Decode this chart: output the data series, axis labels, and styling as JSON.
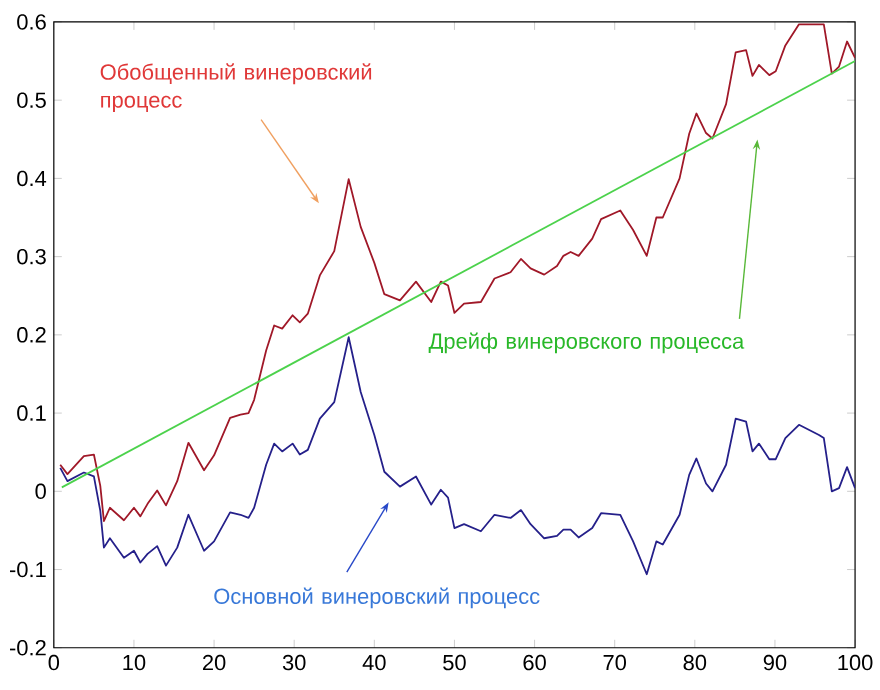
{
  "chart_data": {
    "type": "line",
    "xlim": [
      0,
      100
    ],
    "ylim": [
      -0.2,
      0.6
    ],
    "xticks": [
      0,
      10,
      20,
      30,
      40,
      50,
      60,
      70,
      80,
      90,
      100
    ],
    "yticks": [
      -0.2,
      -0.1,
      0,
      0.1,
      0.2,
      0.3,
      0.4,
      0.5,
      0.6
    ],
    "marker": "none",
    "line_style": "solid",
    "series": [
      {
        "color": "#a01828",
        "x": [
          0.8,
          1.7,
          3.75,
          5,
          5.8,
          6.25,
          7,
          8.75,
          10,
          10.8,
          11.7,
          12.9,
          14,
          15.4,
          16.8,
          18.75,
          20,
          22,
          23.3,
          24.3,
          25,
          26.5,
          27.5,
          28.5,
          29.8,
          30.7,
          31.7,
          33.2,
          35,
          36.8,
          38.3,
          40,
          41.25,
          43.2,
          45.2,
          47.1,
          48.3,
          49.2,
          50,
          51.2,
          53.3,
          55,
          57,
          58.3,
          59.5,
          61.2,
          62.8,
          63.6,
          64.5,
          65.5,
          67.2,
          68.3,
          70.7,
          72.3,
          74,
          75.2,
          76,
          78.1,
          79.3,
          80.2,
          81.4,
          82.2,
          83.9,
          85.1,
          86.4,
          87.2,
          88,
          89.3,
          90.1,
          91.3,
          93,
          95.5,
          96.1,
          97.1,
          98,
          99,
          100
        ],
        "values": [
          0.034,
          0.022,
          0.045,
          0.047,
          0.007,
          -0.038,
          -0.021,
          -0.037,
          -0.021,
          -0.032,
          -0.016,
          0.001,
          -0.018,
          0.013,
          0.062,
          0.027,
          0.046,
          0.094,
          0.098,
          0.1,
          0.117,
          0.18,
          0.212,
          0.208,
          0.225,
          0.216,
          0.227,
          0.276,
          0.307,
          0.399,
          0.338,
          0.292,
          0.252,
          0.244,
          0.268,
          0.242,
          0.268,
          0.263,
          0.228,
          0.24,
          0.242,
          0.272,
          0.28,
          0.297,
          0.285,
          0.277,
          0.288,
          0.301,
          0.306,
          0.301,
          0.323,
          0.348,
          0.359,
          0.334,
          0.301,
          0.35,
          0.35,
          0.4,
          0.457,
          0.483,
          0.458,
          0.451,
          0.495,
          0.561,
          0.564,
          0.531,
          0.545,
          0.532,
          0.537,
          0.57,
          0.597,
          0.597,
          0.597,
          0.534,
          0.543,
          0.575,
          0.554
        ]
      },
      {
        "color": "#25208a",
        "x": [
          0.8,
          1.7,
          3.75,
          5,
          5.8,
          6.25,
          7,
          8.75,
          10,
          10.8,
          11.7,
          12.9,
          14,
          15.4,
          16.8,
          18.75,
          20,
          22,
          23.3,
          24.3,
          25,
          26.5,
          27.5,
          28.5,
          29.8,
          30.7,
          31.7,
          33.2,
          35,
          36.8,
          38.3,
          40,
          41.25,
          43.2,
          45.2,
          47.1,
          48.3,
          49.2,
          50,
          51.2,
          53.3,
          55,
          57,
          58.3,
          59.5,
          61.2,
          62.8,
          63.6,
          64.5,
          65.5,
          67.2,
          68.3,
          70.7,
          72.3,
          74,
          75.2,
          76,
          78.1,
          79.3,
          80.2,
          81.4,
          82.2,
          83.9,
          85.1,
          86.4,
          87.2,
          88,
          89.3,
          90.1,
          91.3,
          93,
          95.5,
          96.1,
          97.1,
          98,
          99,
          100
        ],
        "values": [
          0.03,
          0.013,
          0.024,
          0.019,
          -0.025,
          -0.072,
          -0.06,
          -0.085,
          -0.076,
          -0.091,
          -0.08,
          -0.07,
          -0.095,
          -0.072,
          -0.03,
          -0.076,
          -0.064,
          -0.027,
          -0.03,
          -0.034,
          -0.021,
          0.034,
          0.061,
          0.051,
          0.061,
          0.047,
          0.053,
          0.093,
          0.114,
          0.197,
          0.127,
          0.072,
          0.025,
          0.006,
          0.019,
          -0.017,
          0.002,
          -0.008,
          -0.047,
          -0.042,
          -0.051,
          -0.03,
          -0.034,
          -0.024,
          -0.042,
          -0.06,
          -0.057,
          -0.049,
          -0.049,
          -0.059,
          -0.047,
          -0.028,
          -0.03,
          -0.064,
          -0.106,
          -0.064,
          -0.068,
          -0.03,
          0.021,
          0.042,
          0.01,
          0.0,
          0.034,
          0.093,
          0.089,
          0.051,
          0.061,
          0.041,
          0.041,
          0.068,
          0.085,
          0.072,
          0.068,
          0.0,
          0.004,
          0.031,
          0.004
        ]
      },
      {
        "color": "#4cd24c",
        "x": [
          1,
          100
        ],
        "values": [
          0.005,
          0.55
        ]
      }
    ],
    "annotations": [
      "Обобщенный винеровский процесс",
      "Основной винеровский процесс",
      "Дрейф винеровского процесса"
    ]
  }
}
